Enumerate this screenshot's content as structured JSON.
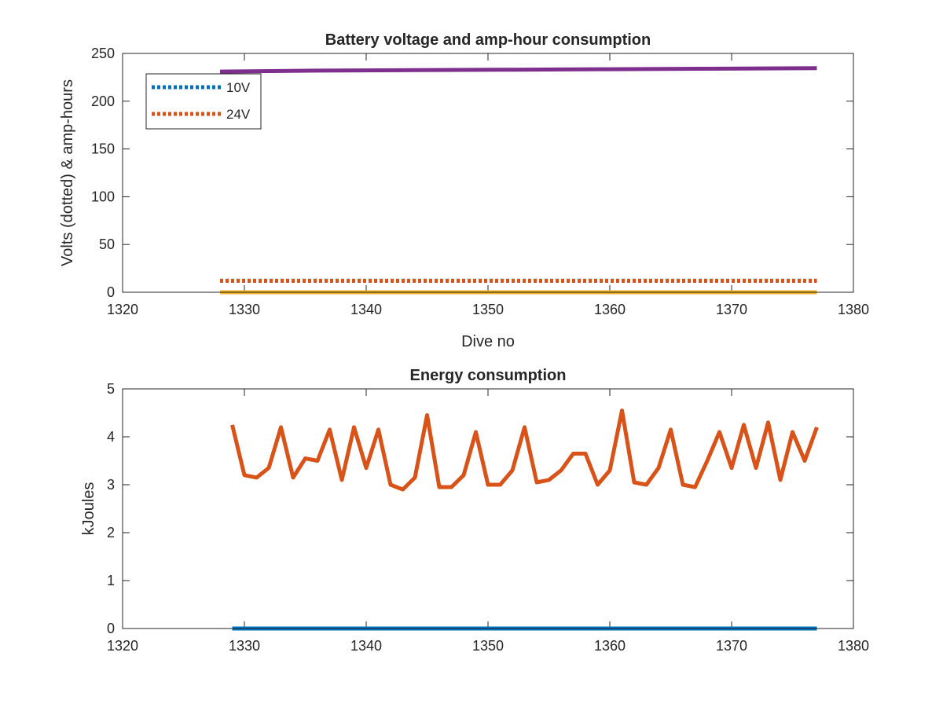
{
  "colors": {
    "blue": "#0072BD",
    "orange": "#D95319",
    "yellow": "#EDB120",
    "purple": "#7E2F8E",
    "axis": "#262626"
  },
  "chart_data": [
    {
      "type": "line",
      "title": "Battery voltage and amp-hour consumption",
      "xlabel": "Dive no",
      "ylabel": "Volts (dotted) & amp-hours",
      "xlim": [
        1320,
        1380
      ],
      "ylim": [
        0,
        250
      ],
      "xticks": [
        1320,
        1330,
        1340,
        1350,
        1360,
        1370,
        1380
      ],
      "yticks": [
        0,
        50,
        100,
        150,
        200,
        250
      ],
      "legend": {
        "placement": "top-left",
        "entries": [
          "10V",
          "24V"
        ]
      },
      "series": [
        {
          "name": "10V",
          "style": "dotted",
          "color": "#0072BD",
          "x": [
            1328,
            1377
          ],
          "y": [
            12,
            12
          ]
        },
        {
          "name": "24V",
          "style": "dotted",
          "color": "#D95319",
          "x": [
            1328,
            1377
          ],
          "y": [
            12,
            12
          ]
        },
        {
          "style": "solid",
          "color": "#EDB120",
          "x": [
            1328,
            1377
          ],
          "y": [
            0,
            0
          ]
        },
        {
          "style": "solid",
          "color": "#7E2F8E",
          "x": [
            1328,
            1336,
            1344,
            1352,
            1360,
            1368,
            1377
          ],
          "y": [
            231,
            232,
            232.5,
            233,
            233.5,
            234,
            234.5
          ]
        }
      ]
    },
    {
      "type": "line",
      "title": "Energy consumption",
      "xlabel": "",
      "ylabel": "kJoules",
      "xlim": [
        1320,
        1380
      ],
      "ylim": [
        0,
        5
      ],
      "xticks": [
        1320,
        1330,
        1340,
        1350,
        1360,
        1370,
        1380
      ],
      "yticks": [
        0,
        1,
        2,
        3,
        4,
        5
      ],
      "series": [
        {
          "style": "solid",
          "color": "#D95319",
          "x": [
            1329,
            1330,
            1331,
            1332,
            1333,
            1334,
            1335,
            1336,
            1337,
            1338,
            1339,
            1340,
            1341,
            1342,
            1343,
            1344,
            1345,
            1346,
            1347,
            1348,
            1349,
            1350,
            1351,
            1352,
            1353,
            1354,
            1355,
            1356,
            1357,
            1358,
            1359,
            1360,
            1361,
            1362,
            1363,
            1364,
            1365,
            1366,
            1367,
            1368,
            1369,
            1370,
            1371,
            1372,
            1373,
            1374,
            1375,
            1376,
            1377
          ],
          "y": [
            4.25,
            3.2,
            3.15,
            3.35,
            4.2,
            3.15,
            3.55,
            3.5,
            4.15,
            3.1,
            4.2,
            3.35,
            4.15,
            3.0,
            2.9,
            3.15,
            4.45,
            2.95,
            2.95,
            3.2,
            4.1,
            3.0,
            3.0,
            3.3,
            4.2,
            3.05,
            3.1,
            3.3,
            3.65,
            3.65,
            3.0,
            3.3,
            4.55,
            3.05,
            3.0,
            3.35,
            4.15,
            3.0,
            2.95,
            3.5,
            4.1,
            3.35,
            4.25,
            3.35,
            4.3,
            3.1,
            4.1,
            3.5,
            4.2
          ]
        },
        {
          "style": "solid",
          "color": "#0072BD",
          "x": [
            1329,
            1377
          ],
          "y": [
            0,
            0
          ]
        }
      ]
    }
  ]
}
